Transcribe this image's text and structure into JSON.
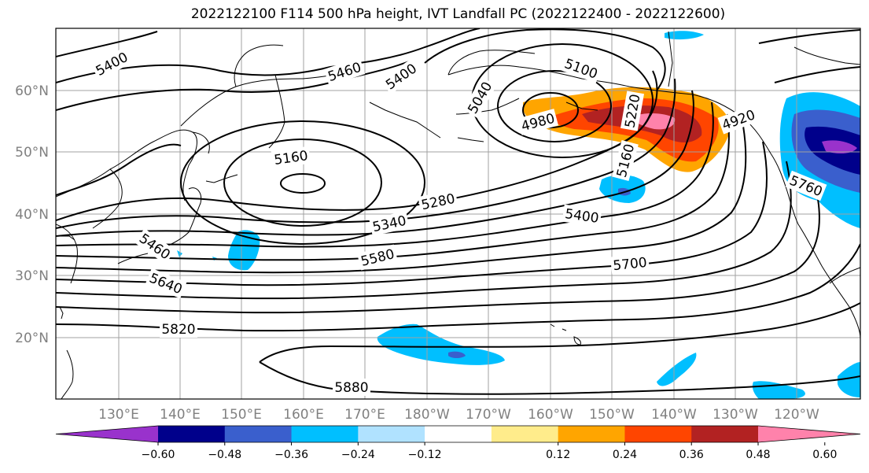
{
  "title": "2022122100 F114 500 hPa height, IVT Landfall PC (2022122400 - 2022122600)",
  "map": {
    "lat_labels": [
      "60°N",
      "50°N",
      "40°N",
      "30°N",
      "20°N"
    ],
    "lon_labels": [
      "130°E",
      "140°E",
      "150°E",
      "160°E",
      "170°E",
      "180°W",
      "170°W",
      "160°W",
      "150°W",
      "140°W",
      "130°W",
      "120°W"
    ],
    "contour_labels": [
      "5400",
      "5460",
      "5400",
      "5100",
      "5040",
      "4980",
      "5220",
      "4920",
      "5160",
      "5160",
      "5280",
      "5340",
      "5400",
      "5580",
      "5700",
      "5460",
      "5640",
      "5820",
      "5880",
      "5760"
    ]
  },
  "colorbar": {
    "ticks": [
      "−0.60",
      "−0.48",
      "−0.36",
      "−0.24",
      "−0.12",
      "0.12",
      "0.24",
      "0.36",
      "0.48",
      "0.60"
    ],
    "colors": [
      "#9932cc",
      "#00008b",
      "#3a5fcd",
      "#00bfff",
      "#b0e2ff",
      "#ffffff",
      "#ffec8b",
      "#ffa500",
      "#ff4500",
      "#b22222",
      "#ff82ab"
    ]
  }
}
